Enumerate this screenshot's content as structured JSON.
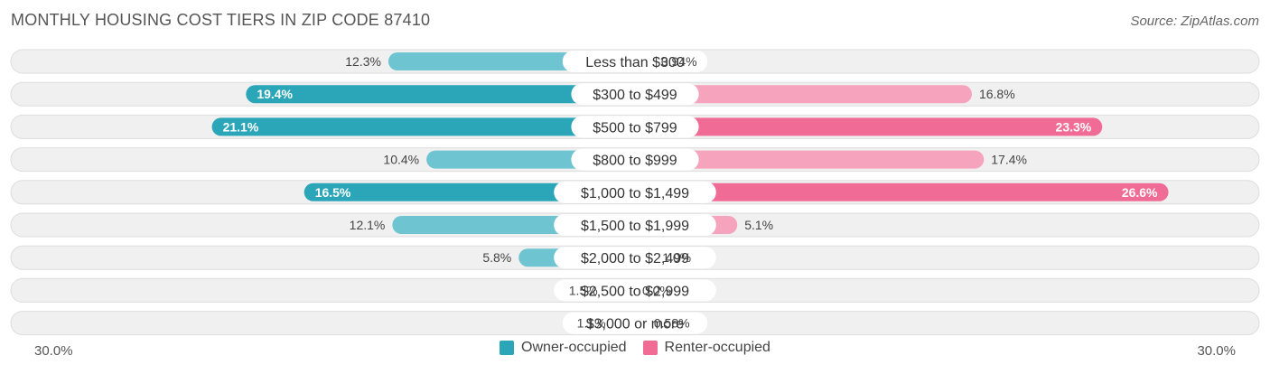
{
  "header": {
    "title": "MONTHLY HOUSING COST TIERS IN ZIP CODE 87410",
    "source": "Source: ZipAtlas.com"
  },
  "axis": {
    "left_label": "30.0%",
    "right_label": "30.0%"
  },
  "legend": {
    "owner_label": "Owner-occupied",
    "renter_label": "Renter-occupied"
  },
  "colors": {
    "owner_strong": "#2ba6b8",
    "owner_light": "#6fc4d1",
    "renter_strong": "#f06b96",
    "renter_light": "#f6a4bd",
    "row_bg": "#f0f0f0",
    "row_border": "#dddddd"
  },
  "chart_data": {
    "type": "bar",
    "orientation": "diverging-horizontal",
    "xlim": [
      0,
      30
    ],
    "categories": [
      "Less than $300",
      "$300 to $499",
      "$500 to $799",
      "$800 to $999",
      "$1,000 to $1,499",
      "$1,500 to $1,999",
      "$2,000 to $2,499",
      "$2,500 to $2,999",
      "$3,000 or more"
    ],
    "series": [
      {
        "name": "Owner-occupied",
        "values": [
          12.3,
          19.4,
          21.1,
          10.4,
          16.5,
          12.1,
          5.8,
          1.5,
          1.1
        ],
        "labels": [
          "12.3%",
          "19.4%",
          "21.1%",
          "10.4%",
          "16.5%",
          "12.1%",
          "5.8%",
          "1.5%",
          "1.1%"
        ]
      },
      {
        "name": "Renter-occupied",
        "values": [
          0.94,
          16.8,
          23.3,
          17.4,
          26.6,
          5.1,
          1.0,
          0.0,
          0.58
        ],
        "labels": [
          "0.94%",
          "16.8%",
          "23.3%",
          "17.4%",
          "26.6%",
          "5.1%",
          "1.0%",
          "0.0%",
          "0.58%"
        ]
      }
    ],
    "legend_position": "bottom-center"
  }
}
